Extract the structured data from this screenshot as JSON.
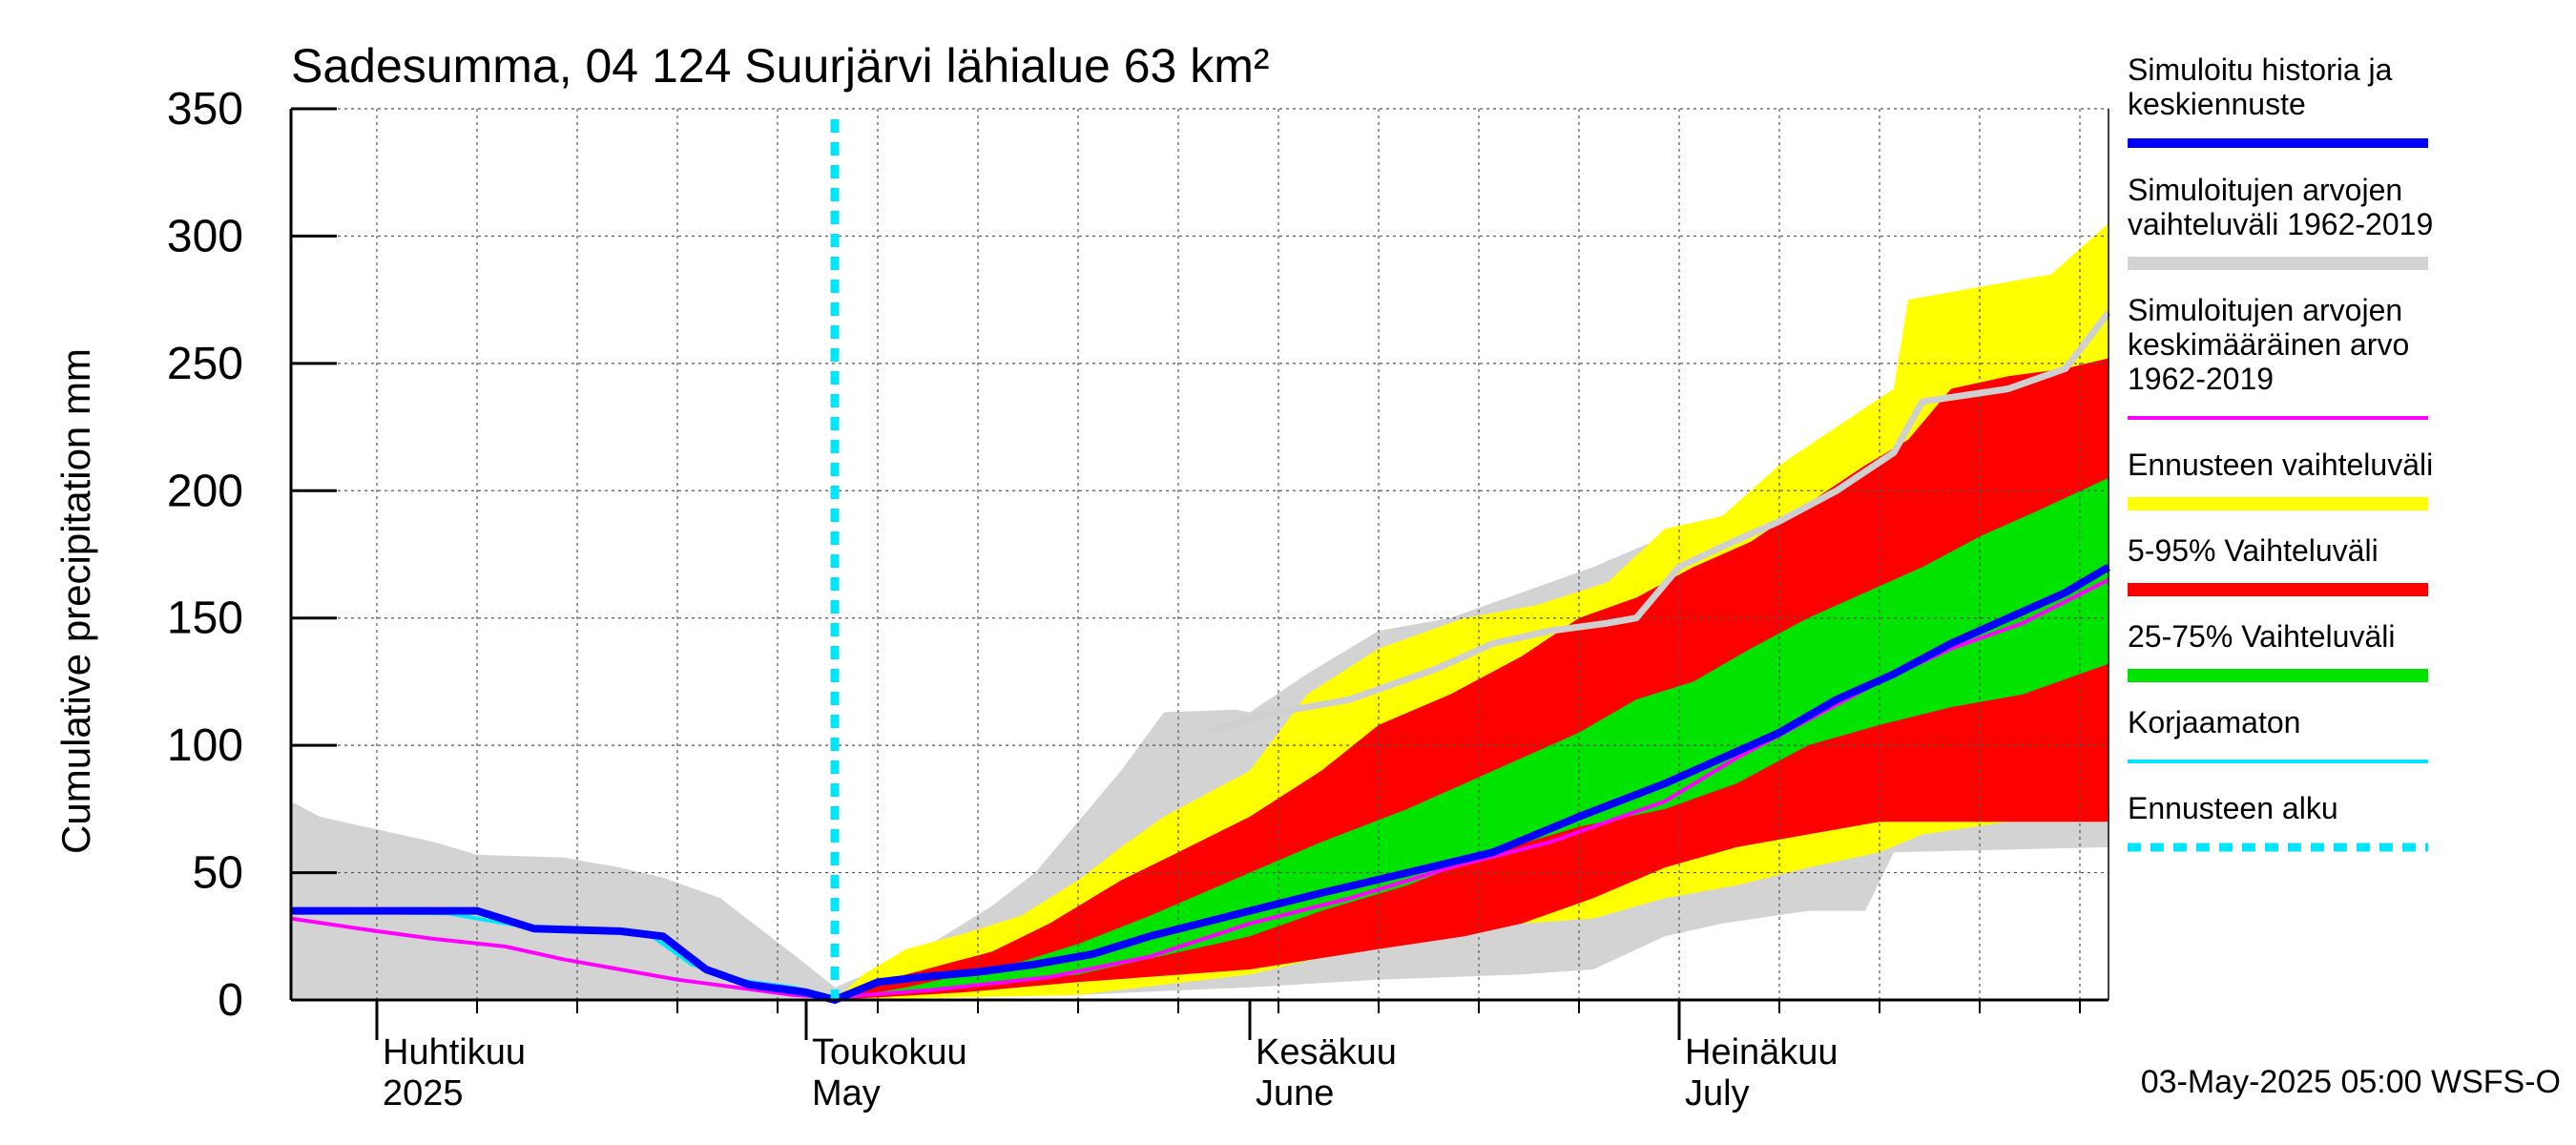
{
  "chart_data": {
    "type": "area",
    "title": "Sadesumma, 04 124 Suurjärvi lähialue 63 km²",
    "xlabel": "",
    "ylabel": "Cumulative precipitation   mm",
    "ylim": [
      0,
      350
    ],
    "xlim": [
      "2025-03-26",
      "2025-07-31"
    ],
    "yticks": [
      0,
      50,
      100,
      150,
      200,
      250,
      300,
      350
    ],
    "grid": true,
    "legend_position": "right",
    "forecast_start": "2025-05-03",
    "footer": "03-May-2025 05:00 WSFS-O",
    "month_labels": [
      {
        "date": "2025-04-01",
        "line1": "Huhtikuu",
        "line2": "2025"
      },
      {
        "date": "2025-05-01",
        "line1": "Toukokuu",
        "line2": "May"
      },
      {
        "date": "2025-06-01",
        "line1": "Kesäkuu",
        "line2": "June"
      },
      {
        "date": "2025-07-01",
        "line1": "Heinäkuu",
        "line2": "July"
      }
    ],
    "colors": {
      "history_band": "#d3d3d3",
      "forecast_range": "#ffff00",
      "p5_95": "#ff0000",
      "p25_75": "#00e400",
      "simulated": "#0000ff",
      "mean": "#ff00ff",
      "uncorrected": "#00e5ff",
      "forecast_start": "#00e5ff",
      "mean_history_gray": "#cfcfcf"
    },
    "legend": [
      {
        "key": "simulated",
        "label": [
          "Simuloitu historia ja",
          "keskiennuste"
        ]
      },
      {
        "key": "history_band",
        "label": [
          "Simuloitujen arvojen",
          "vaihteluväli 1962-2019"
        ]
      },
      {
        "key": "mean",
        "label": [
          "Simuloitujen arvojen",
          "keskimääräinen arvo",
          "   1962-2019"
        ]
      },
      {
        "key": "forecast_range",
        "label": [
          "Ennusteen vaihteluväli"
        ]
      },
      {
        "key": "p5_95",
        "label": [
          "5-95% Vaihteluväli"
        ]
      },
      {
        "key": "p25_75",
        "label": [
          "25-75% Vaihteluväli"
        ]
      },
      {
        "key": "uncorrected",
        "label": [
          "Korjaamaton"
        ]
      },
      {
        "key": "forecast_start",
        "label": [
          "Ennusteen alku"
        ]
      }
    ],
    "series": {
      "history_upper": [
        [
          "2025-03-26",
          78
        ],
        [
          "2025-03-28",
          72
        ],
        [
          "2025-04-01",
          67
        ],
        [
          "2025-04-05",
          62
        ],
        [
          "2025-04-08",
          57
        ],
        [
          "2025-04-14",
          56
        ],
        [
          "2025-04-18",
          52
        ],
        [
          "2025-04-21",
          48
        ],
        [
          "2025-04-25",
          40
        ],
        [
          "2025-04-28",
          27
        ],
        [
          "2025-05-01",
          14
        ],
        [
          "2025-05-03",
          5
        ],
        [
          "2025-05-06",
          12
        ],
        [
          "2025-05-10",
          23
        ],
        [
          "2025-05-14",
          37
        ],
        [
          "2025-05-17",
          50
        ],
        [
          "2025-05-20",
          70
        ],
        [
          "2025-05-23",
          90
        ],
        [
          "2025-05-26",
          113
        ],
        [
          "2025-05-31",
          114
        ],
        [
          "2025-06-01",
          113
        ],
        [
          "2025-06-05",
          128
        ],
        [
          "2025-06-10",
          145
        ],
        [
          "2025-06-15",
          150
        ],
        [
          "2025-06-20",
          160
        ],
        [
          "2025-06-25",
          170
        ],
        [
          "2025-06-30",
          182
        ],
        [
          "2025-07-04",
          190
        ],
        [
          "2025-07-08",
          205
        ],
        [
          "2025-07-11",
          215
        ],
        [
          "2025-07-14",
          222
        ],
        [
          "2025-07-17",
          232
        ],
        [
          "2025-07-20",
          240
        ],
        [
          "2025-07-24",
          245
        ],
        [
          "2025-07-28",
          255
        ],
        [
          "2025-07-31",
          270
        ]
      ],
      "history_lower": [
        [
          "2025-03-26",
          0
        ],
        [
          "2025-05-03",
          0
        ],
        [
          "2025-05-20",
          2
        ],
        [
          "2025-06-01",
          5
        ],
        [
          "2025-06-10",
          8
        ],
        [
          "2025-06-20",
          10
        ],
        [
          "2025-06-25",
          12
        ],
        [
          "2025-06-30",
          25
        ],
        [
          "2025-07-04",
          30
        ],
        [
          "2025-07-10",
          35
        ],
        [
          "2025-07-14",
          35
        ],
        [
          "2025-07-16",
          58
        ],
        [
          "2025-07-31",
          60
        ]
      ],
      "forecast_upper": [
        [
          "2025-05-03",
          0
        ],
        [
          "2025-05-05",
          10
        ],
        [
          "2025-05-08",
          20
        ],
        [
          "2025-05-12",
          26
        ],
        [
          "2025-05-16",
          33
        ],
        [
          "2025-05-20",
          47
        ],
        [
          "2025-05-23",
          60
        ],
        [
          "2025-05-26",
          72
        ],
        [
          "2025-06-01",
          90
        ],
        [
          "2025-06-05",
          120
        ],
        [
          "2025-06-10",
          138
        ],
        [
          "2025-06-16",
          150
        ],
        [
          "2025-06-21",
          155
        ],
        [
          "2025-06-26",
          164
        ],
        [
          "2025-06-30",
          185
        ],
        [
          "2025-07-04",
          190
        ],
        [
          "2025-07-08",
          210
        ],
        [
          "2025-07-12",
          225
        ],
        [
          "2025-07-16",
          240
        ],
        [
          "2025-07-17",
          275
        ],
        [
          "2025-07-22",
          280
        ],
        [
          "2025-07-27",
          285
        ],
        [
          "2025-07-31",
          305
        ]
      ],
      "forecast_lower": [
        [
          "2025-05-03",
          0
        ],
        [
          "2025-05-20",
          2
        ],
        [
          "2025-06-01",
          10
        ],
        [
          "2025-06-10",
          22
        ],
        [
          "2025-06-15",
          25
        ],
        [
          "2025-06-20",
          30
        ],
        [
          "2025-06-25",
          32
        ],
        [
          "2025-06-30",
          40
        ],
        [
          "2025-07-05",
          45
        ],
        [
          "2025-07-10",
          52
        ],
        [
          "2025-07-15",
          58
        ],
        [
          "2025-07-18",
          65
        ],
        [
          "2025-07-24",
          70
        ],
        [
          "2025-07-31",
          80
        ]
      ],
      "p95": [
        [
          "2025-05-03",
          0
        ],
        [
          "2025-05-06",
          7
        ],
        [
          "2025-05-10",
          13
        ],
        [
          "2025-05-14",
          19
        ],
        [
          "2025-05-18",
          30
        ],
        [
          "2025-05-23",
          47
        ],
        [
          "2025-05-27",
          58
        ],
        [
          "2025-06-01",
          72
        ],
        [
          "2025-06-06",
          90
        ],
        [
          "2025-06-10",
          108
        ],
        [
          "2025-06-15",
          120
        ],
        [
          "2025-06-20",
          135
        ],
        [
          "2025-06-24",
          150
        ],
        [
          "2025-06-28",
          158
        ],
        [
          "2025-07-02",
          170
        ],
        [
          "2025-07-06",
          180
        ],
        [
          "2025-07-10",
          195
        ],
        [
          "2025-07-14",
          210
        ],
        [
          "2025-07-17",
          220
        ],
        [
          "2025-07-20",
          240
        ],
        [
          "2025-07-24",
          245
        ],
        [
          "2025-07-28",
          248
        ],
        [
          "2025-07-31",
          252
        ]
      ],
      "p5": [
        [
          "2025-05-03",
          0
        ],
        [
          "2025-05-12",
          3
        ],
        [
          "2025-05-20",
          7
        ],
        [
          "2025-06-01",
          12
        ],
        [
          "2025-06-10",
          20
        ],
        [
          "2025-06-16",
          25
        ],
        [
          "2025-06-20",
          30
        ],
        [
          "2025-06-25",
          40
        ],
        [
          "2025-06-30",
          52
        ],
        [
          "2025-07-05",
          60
        ],
        [
          "2025-07-10",
          65
        ],
        [
          "2025-07-15",
          70
        ],
        [
          "2025-07-24",
          70
        ],
        [
          "2025-07-31",
          70
        ]
      ],
      "p75": [
        [
          "2025-05-03",
          0
        ],
        [
          "2025-05-08",
          5
        ],
        [
          "2025-05-12",
          10
        ],
        [
          "2025-05-16",
          15
        ],
        [
          "2025-05-20",
          22
        ],
        [
          "2025-05-25",
          33
        ],
        [
          "2025-06-01",
          50
        ],
        [
          "2025-06-06",
          62
        ],
        [
          "2025-06-12",
          75
        ],
        [
          "2025-06-18",
          90
        ],
        [
          "2025-06-24",
          105
        ],
        [
          "2025-06-28",
          118
        ],
        [
          "2025-07-02",
          125
        ],
        [
          "2025-07-06",
          138
        ],
        [
          "2025-07-10",
          150
        ],
        [
          "2025-07-14",
          160
        ],
        [
          "2025-07-18",
          170
        ],
        [
          "2025-07-22",
          182
        ],
        [
          "2025-07-26",
          192
        ],
        [
          "2025-07-31",
          205
        ]
      ],
      "p25": [
        [
          "2025-05-03",
          0
        ],
        [
          "2025-05-12",
          5
        ],
        [
          "2025-05-20",
          10
        ],
        [
          "2025-06-01",
          25
        ],
        [
          "2025-06-06",
          35
        ],
        [
          "2025-06-12",
          45
        ],
        [
          "2025-06-18",
          58
        ],
        [
          "2025-06-24",
          68
        ],
        [
          "2025-06-30",
          75
        ],
        [
          "2025-07-05",
          85
        ],
        [
          "2025-07-10",
          100
        ],
        [
          "2025-07-15",
          108
        ],
        [
          "2025-07-20",
          115
        ],
        [
          "2025-07-25",
          120
        ],
        [
          "2025-07-31",
          132
        ]
      ],
      "simulated": [
        [
          "2025-03-26",
          35
        ],
        [
          "2025-04-08",
          35
        ],
        [
          "2025-04-12",
          28
        ],
        [
          "2025-04-18",
          27
        ],
        [
          "2025-04-21",
          25
        ],
        [
          "2025-04-24",
          12
        ],
        [
          "2025-04-27",
          6
        ],
        [
          "2025-05-01",
          3
        ],
        [
          "2025-05-03",
          0
        ],
        [
          "2025-05-06",
          7
        ],
        [
          "2025-05-09",
          9
        ],
        [
          "2025-05-13",
          11
        ],
        [
          "2025-05-17",
          14
        ],
        [
          "2025-05-21",
          18
        ],
        [
          "2025-05-25",
          25
        ],
        [
          "2025-06-01",
          35
        ],
        [
          "2025-06-06",
          42
        ],
        [
          "2025-06-12",
          50
        ],
        [
          "2025-06-18",
          58
        ],
        [
          "2025-06-24",
          72
        ],
        [
          "2025-06-30",
          85
        ],
        [
          "2025-07-04",
          95
        ],
        [
          "2025-07-08",
          105
        ],
        [
          "2025-07-12",
          118
        ],
        [
          "2025-07-16",
          128
        ],
        [
          "2025-07-20",
          140
        ],
        [
          "2025-07-24",
          150
        ],
        [
          "2025-07-28",
          160
        ],
        [
          "2025-07-31",
          170
        ]
      ],
      "uncorrected": [
        [
          "2025-03-26",
          35
        ],
        [
          "2025-04-06",
          34
        ],
        [
          "2025-04-10",
          30
        ],
        [
          "2025-04-14",
          27
        ],
        [
          "2025-04-20",
          26
        ],
        [
          "2025-04-23",
          14
        ],
        [
          "2025-04-26",
          8
        ],
        [
          "2025-04-30",
          5
        ],
        [
          "2025-05-03",
          1
        ]
      ],
      "mean": [
        [
          "2025-03-26",
          32
        ],
        [
          "2025-04-01",
          27
        ],
        [
          "2025-04-05",
          24
        ],
        [
          "2025-04-10",
          21
        ],
        [
          "2025-04-14",
          16
        ],
        [
          "2025-04-18",
          12
        ],
        [
          "2025-04-22",
          8
        ],
        [
          "2025-04-26",
          5
        ],
        [
          "2025-04-30",
          2
        ],
        [
          "2025-05-03",
          1
        ],
        [
          "2025-05-10",
          4
        ],
        [
          "2025-05-18",
          9
        ],
        [
          "2025-05-25",
          17
        ],
        [
          "2025-06-01",
          30
        ],
        [
          "2025-06-08",
          40
        ],
        [
          "2025-06-15",
          52
        ],
        [
          "2025-06-22",
          62
        ],
        [
          "2025-06-30",
          78
        ],
        [
          "2025-07-05",
          95
        ],
        [
          "2025-07-10",
          110
        ],
        [
          "2025-07-15",
          125
        ],
        [
          "2025-07-20",
          138
        ],
        [
          "2025-07-25",
          148
        ],
        [
          "2025-07-31",
          165
        ]
      ],
      "mean_history_gray": [
        [
          "2025-05-29",
          105
        ],
        [
          "2025-06-02",
          112
        ],
        [
          "2025-06-08",
          118
        ],
        [
          "2025-06-14",
          130
        ],
        [
          "2025-06-18",
          140
        ],
        [
          "2025-06-22",
          145
        ],
        [
          "2025-06-26",
          148
        ],
        [
          "2025-06-28",
          150
        ],
        [
          "2025-07-01",
          170
        ],
        [
          "2025-07-04",
          178
        ],
        [
          "2025-07-08",
          188
        ],
        [
          "2025-07-12",
          200
        ],
        [
          "2025-07-16",
          215
        ],
        [
          "2025-07-18",
          235
        ],
        [
          "2025-07-24",
          240
        ],
        [
          "2025-07-28",
          248
        ],
        [
          "2025-07-31",
          270
        ]
      ]
    }
  }
}
